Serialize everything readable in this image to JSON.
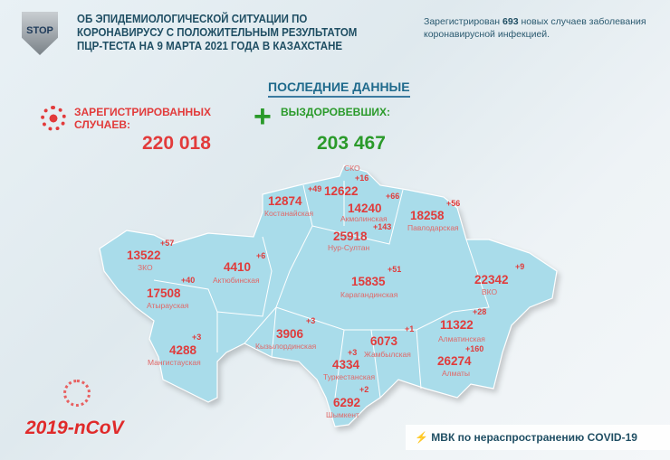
{
  "header": {
    "title": "ОБ ЭПИДЕМИОЛОГИЧЕСКОЙ СИТУАЦИИ ПО КОРОНАВИРУСУ С ПОЛОЖИТЕЛЬНЫМ РЕЗУЛЬТАТОМ ПЦР-ТЕСТА НА 9 МАРТА 2021 ГОДА В КАЗАХСТАНЕ",
    "logo_text": "STOP",
    "note_prefix": "Зарегистрирован",
    "note_count": "693",
    "note_suffix": "новых случаев заболевания коронавирусной инфекцией."
  },
  "summary": {
    "heading": "ПОСЛЕДНИЕ ДАННЫЕ",
    "registered_label": "ЗАРЕГИСТРИРОВАННЫХ СЛУЧАЕВ:",
    "registered_value": "220 018",
    "recovered_label": "ВЫЗДОРОВЕВШИХ:",
    "recovered_value": "203 467"
  },
  "regions": [
    {
      "name": "СКО",
      "total": "12622",
      "new": "+16"
    },
    {
      "name": "Костанайская",
      "total": "12874",
      "new": "+49"
    },
    {
      "name": "Акмолинская",
      "total": "14240",
      "new": "+66"
    },
    {
      "name": "Павлодарская",
      "total": "18258",
      "new": "+56"
    },
    {
      "name": "Нур-Султан",
      "total": "25918",
      "new": "+143"
    },
    {
      "name": "ЗКО",
      "total": "13522",
      "new": "+57"
    },
    {
      "name": "Актюбинская",
      "total": "4410",
      "new": "+6"
    },
    {
      "name": "Карагандинская",
      "total": "15835",
      "new": "+51"
    },
    {
      "name": "ВКО",
      "total": "22342",
      "new": "+9"
    },
    {
      "name": "Атырауская",
      "total": "17508",
      "new": "+40"
    },
    {
      "name": "Кызылординская",
      "total": "3906",
      "new": "+3"
    },
    {
      "name": "Мангистауская",
      "total": "4288",
      "new": "+3"
    },
    {
      "name": "Жамбылская",
      "total": "6073",
      "new": "+1"
    },
    {
      "name": "Туркестанская",
      "total": "4334",
      "new": "+3"
    },
    {
      "name": "Алматинская",
      "total": "11322",
      "new": "+28"
    },
    {
      "name": "Алматы",
      "total": "26274",
      "new": "+160"
    },
    {
      "name": "Шымкент",
      "total": "6292",
      "new": "+2"
    }
  ],
  "footer": {
    "virus_code": "2019-nCoV",
    "banner": "МВК по нераспространению COVID-19"
  },
  "colors": {
    "map_fill": "#a9dcea",
    "red": "#e03c3c",
    "green": "#2a9a2a",
    "title": "#1f4e63"
  },
  "icons": [
    "shield-stop-logo",
    "virus-icon",
    "plus-icon",
    "lightning-icon"
  ]
}
